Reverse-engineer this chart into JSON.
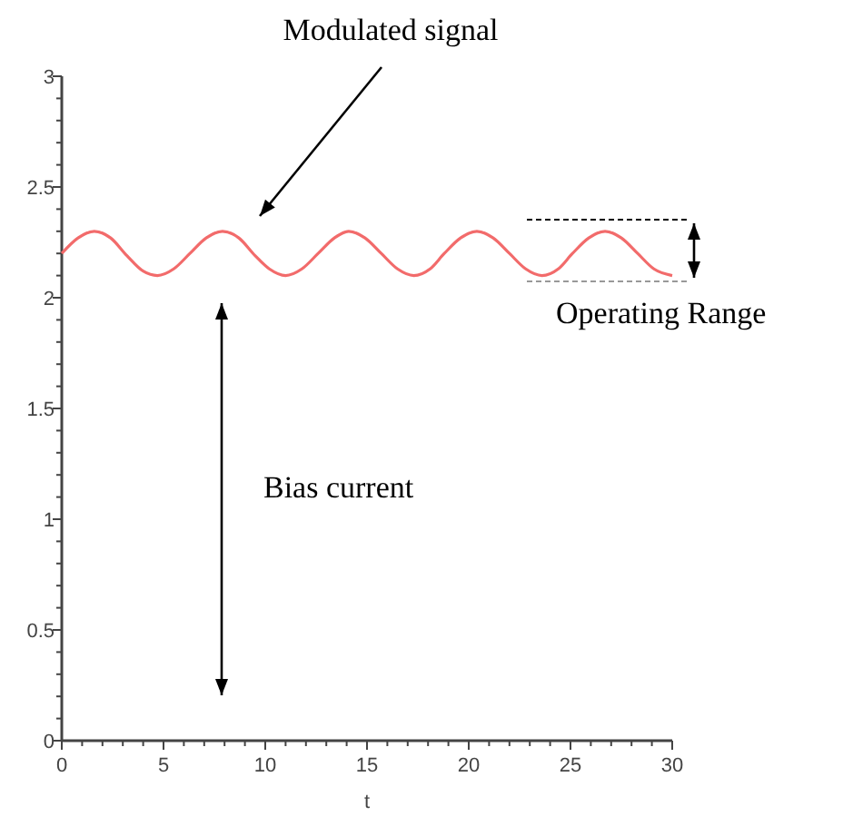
{
  "chart_data": {
    "type": "line",
    "xlabel": "t",
    "x": [
      0,
      0.8,
      1.6,
      2.4,
      3.2,
      4.0,
      4.7,
      5.5,
      6.3,
      7.1,
      7.9,
      8.7,
      9.5,
      10.2,
      11.0,
      11.8,
      12.6,
      13.4,
      14.1,
      14.9,
      15.7,
      16.5,
      17.3,
      18.1,
      18.8,
      19.6,
      20.4,
      21.2,
      22.0,
      22.8,
      23.6,
      24.4,
      25.1,
      25.9,
      26.7,
      27.5,
      28.3,
      29.1,
      30
    ],
    "series": [
      {
        "color": "#f26b6b",
        "values": [
          2.2,
          2.27,
          2.3,
          2.27,
          2.19,
          2.12,
          2.1,
          2.13,
          2.2,
          2.27,
          2.3,
          2.27,
          2.19,
          2.13,
          2.1,
          2.13,
          2.2,
          2.27,
          2.3,
          2.27,
          2.2,
          2.13,
          2.1,
          2.13,
          2.2,
          2.27,
          2.3,
          2.27,
          2.2,
          2.13,
          2.1,
          2.13,
          2.2,
          2.27,
          2.3,
          2.27,
          2.2,
          2.13,
          2.1
        ]
      }
    ],
    "xlim": [
      0,
      30
    ],
    "ylim": [
      0,
      3
    ],
    "xticks": [
      0,
      {
        "value": 1,
        "label": null
      },
      {
        "value": 2,
        "label": null
      },
      {
        "value": 3,
        "label": null
      },
      {
        "value": 4,
        "label": null
      },
      5,
      {
        "value": 6,
        "label": null
      },
      {
        "value": 7,
        "label": null
      },
      {
        "value": 8,
        "label": null
      },
      {
        "value": 9,
        "label": null
      },
      10,
      {
        "value": 11,
        "label": null
      },
      {
        "value": 12,
        "label": null
      },
      {
        "value": 13,
        "label": null
      },
      {
        "value": 14,
        "label": null
      },
      15,
      {
        "value": 16,
        "label": null
      },
      {
        "value": 17,
        "label": null
      },
      {
        "value": 18,
        "label": null
      },
      {
        "value": 19,
        "label": null
      },
      20,
      {
        "value": 21,
        "label": null
      },
      {
        "value": 22,
        "label": null
      },
      {
        "value": 23,
        "label": null
      },
      {
        "value": 24,
        "label": null
      },
      25,
      {
        "value": 26,
        "label": null
      },
      {
        "value": 27,
        "label": null
      },
      {
        "value": 28,
        "label": null
      },
      {
        "value": 29,
        "label": null
      },
      30
    ],
    "yticks": [
      0,
      {
        "value": 0.1,
        "label": null
      },
      {
        "value": 0.2,
        "label": null
      },
      {
        "value": 0.3,
        "label": null
      },
      {
        "value": 0.4,
        "label": null
      },
      0.5,
      {
        "value": 0.6,
        "label": null
      },
      {
        "value": 0.7,
        "label": null
      },
      {
        "value": 0.8,
        "label": null
      },
      {
        "value": 0.9,
        "label": null
      },
      1,
      {
        "value": 1.1,
        "label": null
      },
      {
        "value": 1.2,
        "label": null
      },
      {
        "value": 1.3,
        "label": null
      },
      {
        "value": 1.4,
        "label": null
      },
      1.5,
      {
        "value": 1.6,
        "label": null
      },
      {
        "value": 1.7,
        "label": null
      },
      {
        "value": 1.8,
        "label": null
      },
      {
        "value": 1.9,
        "label": null
      },
      2,
      {
        "value": 2.1,
        "label": null
      },
      {
        "value": 2.2,
        "label": null
      },
      {
        "value": 2.3,
        "label": null
      },
      {
        "value": 2.4,
        "label": null
      },
      2.5,
      {
        "value": 2.6,
        "label": null
      },
      {
        "value": 2.7,
        "label": null
      },
      {
        "value": 2.8,
        "label": null
      },
      {
        "value": 2.9,
        "label": null
      },
      3
    ],
    "grid": false,
    "marker": "none",
    "line_style": "solid",
    "annotations": [
      "Modulated signal",
      "Bias current",
      "Operating Range"
    ]
  }
}
